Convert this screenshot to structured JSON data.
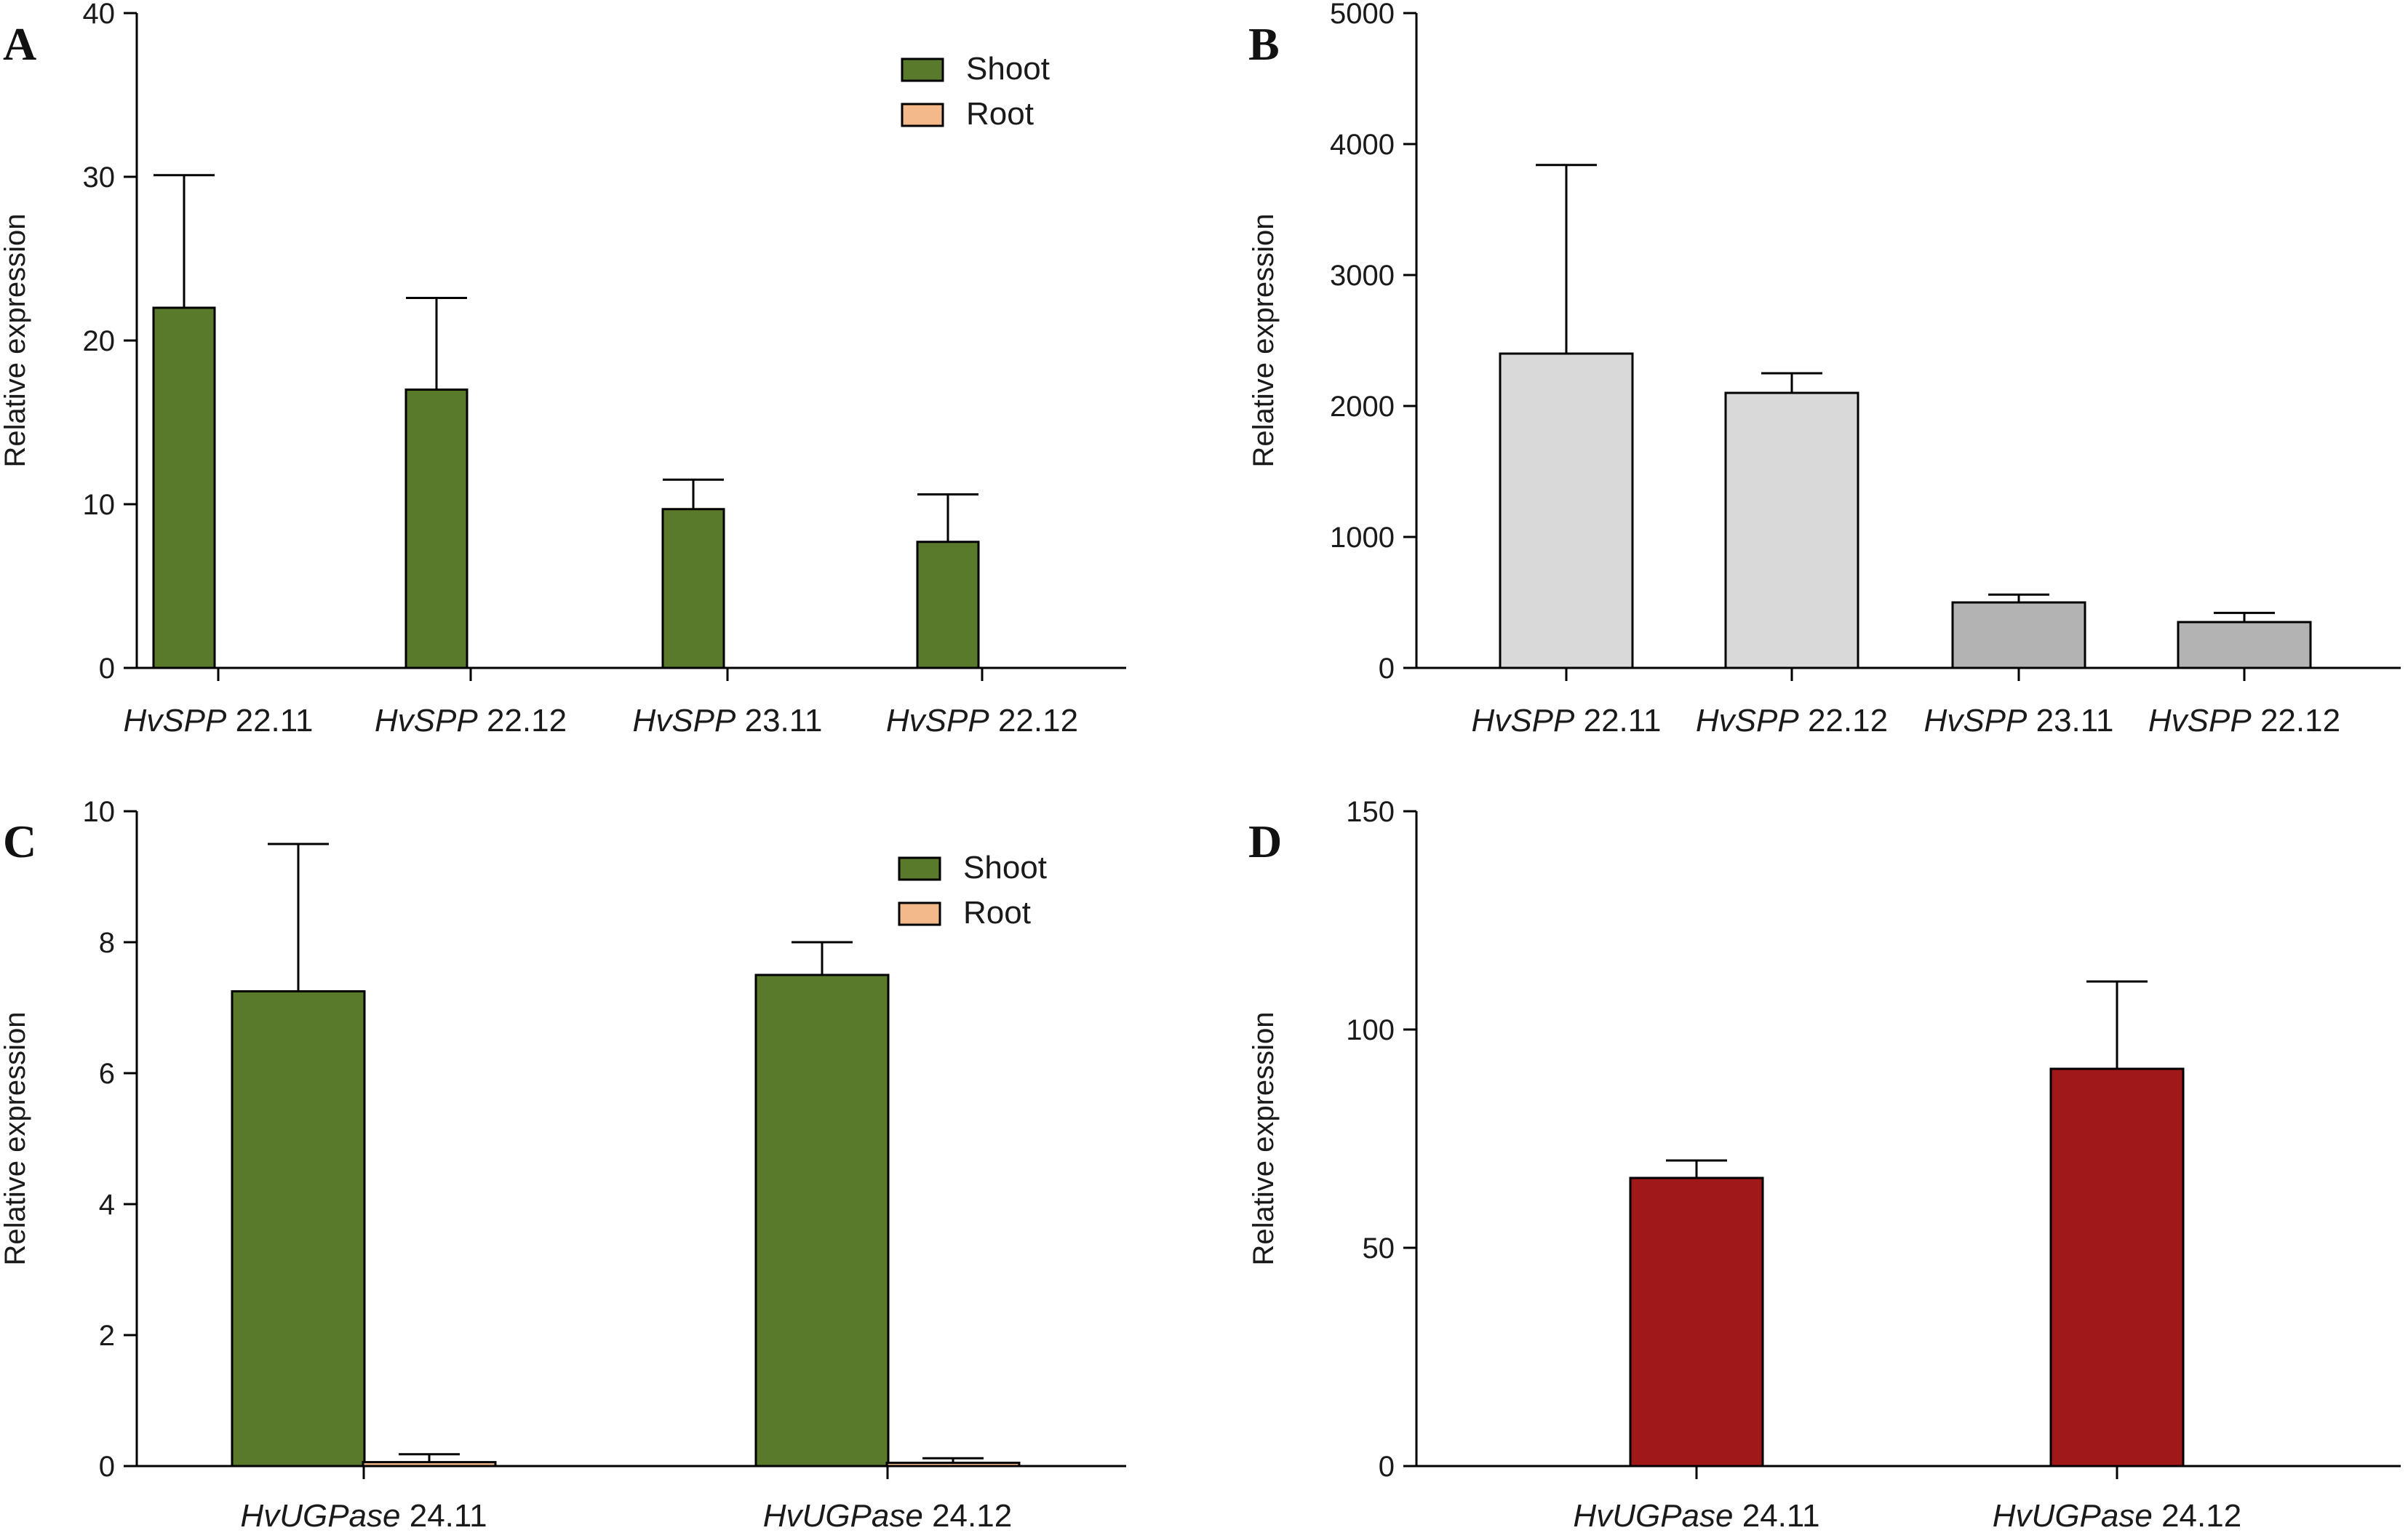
{
  "chart_data": [
    {
      "panel": "A",
      "type": "bar",
      "ylabel": "Relative expression",
      "ylim": [
        0,
        40
      ],
      "yticks": [
        0,
        10,
        20,
        30,
        40
      ],
      "categories": [
        {
          "gene": "HvSPP",
          "num": " 22.11"
        },
        {
          "gene": "HvSPP",
          "num": " 22.12"
        },
        {
          "gene": "HvSPP",
          "num": " 23.11"
        },
        {
          "gene": "HvSPP",
          "num": " 22.12"
        }
      ],
      "series": [
        {
          "name": "Shoot",
          "color": "#5a7a2b",
          "values": [
            22.0,
            17.0,
            9.7,
            7.7
          ],
          "errors": [
            8.1,
            5.6,
            1.8,
            2.9
          ]
        },
        {
          "name": "Root",
          "color": "#f3b98a",
          "values": [
            0,
            0,
            0,
            0
          ],
          "errors": [
            0,
            0,
            0,
            0
          ]
        }
      ],
      "legend": "top-right"
    },
    {
      "panel": "B",
      "type": "bar",
      "ylabel": "Relative expression",
      "ylim": [
        0,
        5000
      ],
      "yticks": [
        0,
        1000,
        2000,
        3000,
        4000,
        5000
      ],
      "categories": [
        {
          "gene": "HvSPP",
          "num": " 22.11"
        },
        {
          "gene": "HvSPP",
          "num": " 22.12"
        },
        {
          "gene": "HvSPP",
          "num": " 23.11"
        },
        {
          "gene": "HvSPP",
          "num": " 22.12"
        }
      ],
      "series": [
        {
          "name": "",
          "colors": [
            "#d9d9d9",
            "#d9d9d9",
            "#b3b3b3",
            "#b3b3b3"
          ],
          "values": [
            2400,
            2100,
            500,
            350
          ],
          "errors": [
            1440,
            150,
            60,
            70
          ]
        }
      ],
      "legend": "none"
    },
    {
      "panel": "C",
      "type": "bar",
      "ylabel": "Relative expression",
      "ylim": [
        0,
        10
      ],
      "yticks": [
        0,
        2,
        4,
        6,
        8,
        10
      ],
      "categories": [
        {
          "gene": "HvUGPase",
          "num": " 24.11"
        },
        {
          "gene": "HvUGPase",
          "num": " 24.12"
        }
      ],
      "series": [
        {
          "name": "Shoot",
          "color": "#5a7a2b",
          "values": [
            7.25,
            7.5
          ],
          "errors": [
            2.25,
            0.5
          ]
        },
        {
          "name": "Root",
          "color": "#f3b98a",
          "values": [
            0.06,
            0.05
          ],
          "errors": [
            0.12,
            0.07
          ]
        }
      ],
      "legend": "top-right"
    },
    {
      "panel": "D",
      "type": "bar",
      "ylabel": "Relative expression",
      "ylim": [
        0,
        150
      ],
      "yticks": [
        0,
        50,
        100,
        150
      ],
      "categories": [
        {
          "gene": "HvUGPase",
          "num": " 24.11"
        },
        {
          "gene": "HvUGPase",
          "num": " 24.12"
        }
      ],
      "series": [
        {
          "name": "",
          "color": "#a01818",
          "values": [
            66,
            91
          ],
          "errors": [
            4,
            20
          ]
        }
      ],
      "legend": "none"
    }
  ]
}
